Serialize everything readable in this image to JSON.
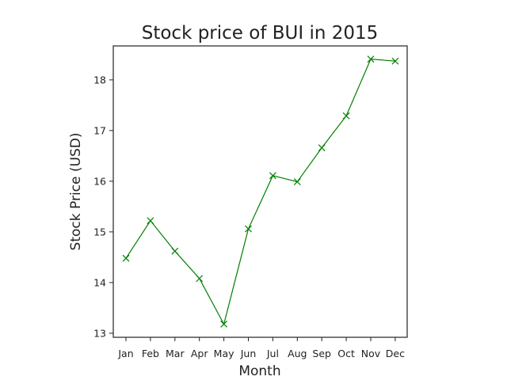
{
  "chart_data": {
    "type": "line",
    "title": "Stock price of BUI in 2015",
    "xlabel": "Month",
    "ylabel": "Stock Price (USD)",
    "categories": [
      "Jan",
      "Feb",
      "Mar",
      "Apr",
      "May",
      "Jun",
      "Jul",
      "Aug",
      "Sep",
      "Oct",
      "Nov",
      "Dec"
    ],
    "series": [
      {
        "values": [
          14.48,
          15.22,
          14.62,
          14.08,
          13.18,
          15.06,
          16.11,
          15.99,
          16.66,
          17.29,
          18.41,
          18.37
        ],
        "color": "#008000",
        "marker": "x"
      }
    ],
    "yticks": [
      13,
      14,
      15,
      16,
      17,
      18
    ],
    "ylim": [
      12.92,
      18.67
    ],
    "grid": false,
    "legend": false
  }
}
